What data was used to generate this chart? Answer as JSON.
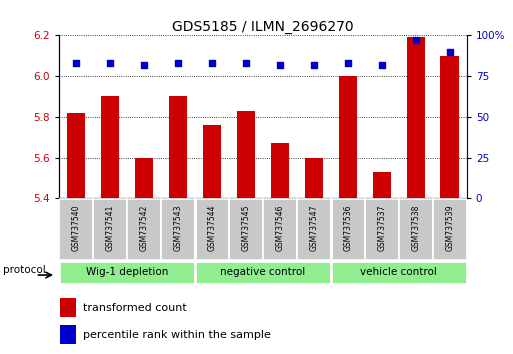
{
  "title": "GDS5185 / ILMN_2696270",
  "samples": [
    "GSM737540",
    "GSM737541",
    "GSM737542",
    "GSM737543",
    "GSM737544",
    "GSM737545",
    "GSM737546",
    "GSM737547",
    "GSM737536",
    "GSM737537",
    "GSM737538",
    "GSM737539"
  ],
  "transformed_count": [
    5.82,
    5.9,
    5.6,
    5.9,
    5.76,
    5.83,
    5.67,
    5.6,
    6.0,
    5.53,
    6.19,
    6.1
  ],
  "percentile_rank": [
    83,
    83,
    82,
    83,
    83,
    83,
    82,
    82,
    83,
    82,
    97,
    90
  ],
  "groups": [
    {
      "label": "Wig-1 depletion",
      "start": 0,
      "end": 4,
      "color": "#90EE90"
    },
    {
      "label": "negative control",
      "start": 4,
      "end": 8,
      "color": "#90EE90"
    },
    {
      "label": "vehicle control",
      "start": 8,
      "end": 12,
      "color": "#90EE90"
    }
  ],
  "ylim_left": [
    5.4,
    6.2
  ],
  "ylim_right": [
    0,
    100
  ],
  "bar_color": "#CC0000",
  "dot_color": "#0000CC",
  "grid_color": "#000000",
  "tick_color_left": "#CC0000",
  "tick_color_right": "#0000CC",
  "background_color": "#ffffff",
  "sample_box_color": "#C8C8C8",
  "protocol_label": "protocol",
  "legend1": "transformed count",
  "legend2": "percentile rank within the sample",
  "yticks_left": [
    5.4,
    5.6,
    5.8,
    6.0,
    6.2
  ],
  "yticks_right": [
    0,
    25,
    50,
    75,
    100
  ],
  "group_dividers": [
    4,
    8
  ],
  "figsize": [
    5.13,
    3.54
  ],
  "dpi": 100
}
